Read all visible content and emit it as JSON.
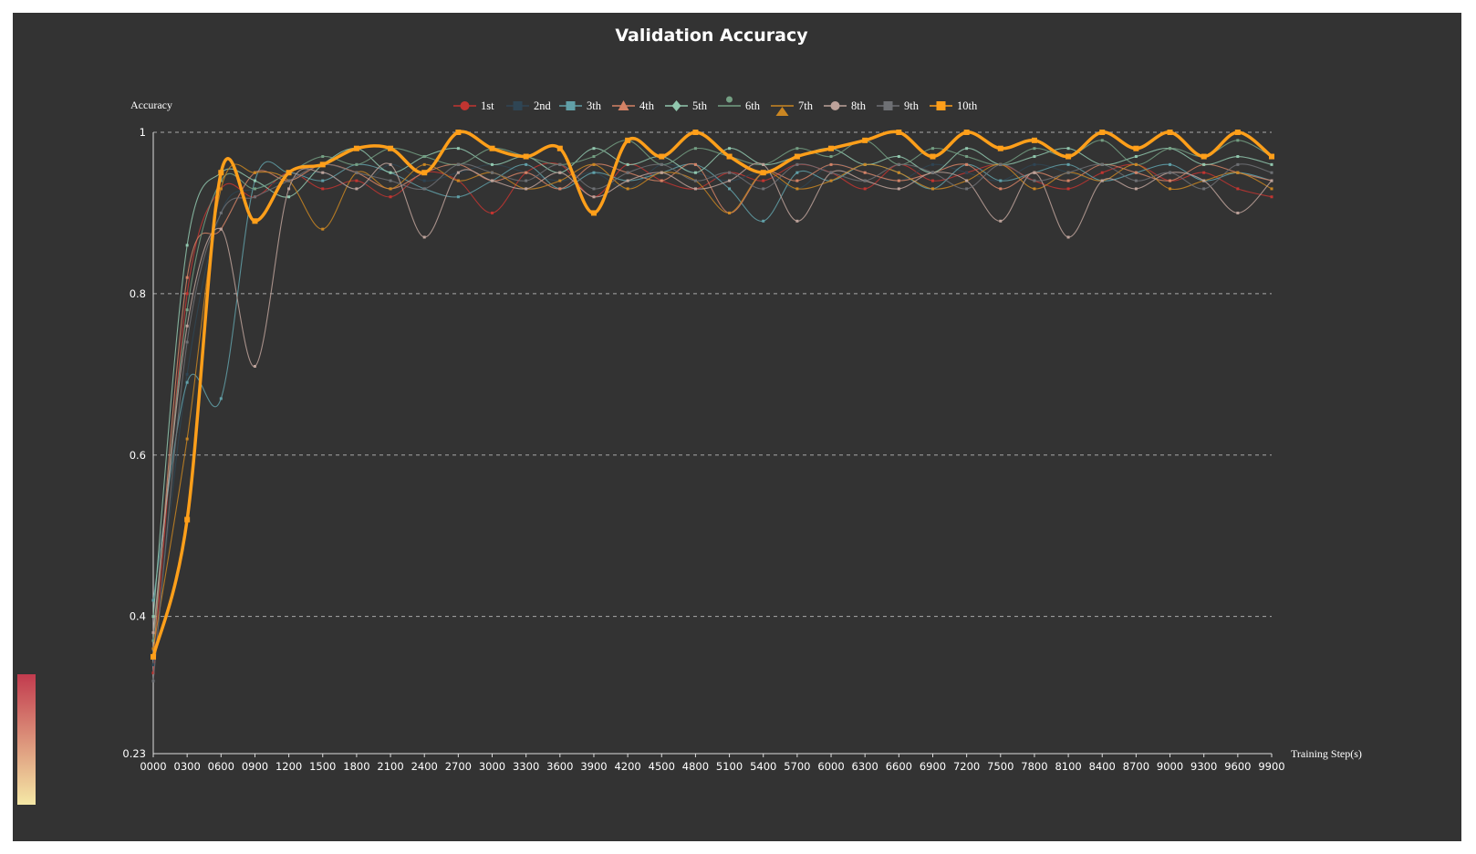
{
  "colors": {
    "background": "#333333",
    "series": [
      "#c23531",
      "#2f4554",
      "#61a0a8",
      "#d48265",
      "#91c7ae",
      "#749f83",
      "#ca8622",
      "#bda29a",
      "#6e7074",
      "#ff9f1a"
    ],
    "visual_map": [
      "#c23b4e",
      "#f5e8a6"
    ]
  },
  "chart_data": {
    "type": "line",
    "title": "Validation Accuracy",
    "ylabel": "Accuracy",
    "xlabel": "Training Step(s)",
    "ylim": [
      0.23,
      1
    ],
    "yticks": [
      "0.23",
      "0.4",
      "0.6",
      "0.8",
      "1"
    ],
    "ytick_values": [
      0.23,
      0.4,
      0.6,
      0.8,
      1
    ],
    "grid": true,
    "legend_position": "top",
    "x": [
      "0000",
      "0300",
      "0600",
      "0900",
      "1200",
      "1500",
      "1800",
      "2100",
      "2400",
      "2700",
      "3000",
      "3300",
      "3600",
      "3900",
      "4200",
      "4500",
      "4800",
      "5100",
      "5400",
      "5700",
      "6000",
      "6300",
      "6600",
      "6900",
      "7200",
      "7500",
      "7800",
      "8100",
      "8400",
      "8700",
      "9000",
      "9300",
      "9600",
      "9900"
    ],
    "series": [
      {
        "name": "1st",
        "marker": "circle",
        "values": [
          0.33,
          0.8,
          0.93,
          0.92,
          0.95,
          0.93,
          0.94,
          0.92,
          0.95,
          0.94,
          0.9,
          0.95,
          0.96,
          0.92,
          0.96,
          0.94,
          0.93,
          0.95,
          0.94,
          0.96,
          0.95,
          0.93,
          0.96,
          0.94,
          0.95,
          0.96,
          0.94,
          0.93,
          0.95,
          0.96,
          0.94,
          0.95,
          0.93,
          0.92
        ]
      },
      {
        "name": "2nd",
        "marker": "square",
        "values": [
          0.34,
          0.7,
          0.9,
          0.93,
          0.94,
          0.95,
          0.93,
          0.96,
          0.94,
          0.95,
          0.96,
          0.95,
          0.94,
          0.95,
          0.93,
          0.96,
          0.95,
          0.94,
          0.95,
          0.93,
          0.96,
          0.95,
          0.94,
          0.96,
          0.95,
          0.94,
          0.96,
          0.95,
          0.94,
          0.95,
          0.96,
          0.94,
          0.95,
          0.94
        ]
      },
      {
        "name": "3th",
        "marker": "square",
        "values": [
          0.42,
          0.69,
          0.67,
          0.94,
          0.95,
          0.94,
          0.96,
          0.95,
          0.93,
          0.92,
          0.94,
          0.96,
          0.93,
          0.95,
          0.94,
          0.95,
          0.96,
          0.93,
          0.89,
          0.95,
          0.94,
          0.96,
          0.95,
          0.93,
          0.96,
          0.94,
          0.95,
          0.96,
          0.94,
          0.95,
          0.96,
          0.94,
          0.95,
          0.94
        ]
      },
      {
        "name": "4th",
        "marker": "triangle",
        "values": [
          0.35,
          0.82,
          0.88,
          0.95,
          0.94,
          0.96,
          0.95,
          0.93,
          0.95,
          0.96,
          0.94,
          0.95,
          0.93,
          0.96,
          0.95,
          0.94,
          0.96,
          0.9,
          0.95,
          0.94,
          0.96,
          0.95,
          0.94,
          0.95,
          0.96,
          0.93,
          0.95,
          0.94,
          0.96,
          0.95,
          0.94,
          0.96,
          0.95,
          0.94
        ]
      },
      {
        "name": "5th",
        "marker": "diamond",
        "values": [
          0.4,
          0.86,
          0.95,
          0.94,
          0.92,
          0.96,
          0.98,
          0.95,
          0.97,
          0.98,
          0.96,
          0.97,
          0.95,
          0.98,
          0.96,
          0.97,
          0.95,
          0.98,
          0.96,
          0.97,
          0.98,
          0.96,
          0.97,
          0.95,
          0.98,
          0.96,
          0.97,
          0.98,
          0.96,
          0.97,
          0.98,
          0.96,
          0.97,
          0.96
        ]
      },
      {
        "name": "6th",
        "marker": "pin",
        "values": [
          0.37,
          0.78,
          0.94,
          0.93,
          0.95,
          0.97,
          0.96,
          0.98,
          0.97,
          0.96,
          0.98,
          0.97,
          0.96,
          0.97,
          0.99,
          0.96,
          0.98,
          0.97,
          0.96,
          0.98,
          0.97,
          0.99,
          0.96,
          0.98,
          0.97,
          0.96,
          0.98,
          0.97,
          0.99,
          0.96,
          0.98,
          0.97,
          0.99,
          0.97
        ]
      },
      {
        "name": "7th",
        "marker": "arrow",
        "values": [
          0.36,
          0.62,
          0.93,
          0.95,
          0.94,
          0.88,
          0.95,
          0.93,
          0.96,
          0.94,
          0.95,
          0.93,
          0.94,
          0.96,
          0.93,
          0.95,
          0.94,
          0.9,
          0.95,
          0.93,
          0.94,
          0.96,
          0.95,
          0.93,
          0.94,
          0.96,
          0.93,
          0.95,
          0.94,
          0.96,
          0.93,
          0.94,
          0.95,
          0.93
        ]
      },
      {
        "name": "8th",
        "marker": "circle",
        "values": [
          0.38,
          0.76,
          0.88,
          0.71,
          0.93,
          0.95,
          0.93,
          0.96,
          0.87,
          0.95,
          0.94,
          0.93,
          0.95,
          0.92,
          0.94,
          0.95,
          0.93,
          0.94,
          0.96,
          0.89,
          0.95,
          0.94,
          0.93,
          0.95,
          0.94,
          0.89,
          0.95,
          0.87,
          0.94,
          0.93,
          0.95,
          0.94,
          0.9,
          0.94
        ]
      },
      {
        "name": "9th",
        "marker": "square",
        "values": [
          0.32,
          0.74,
          0.9,
          0.92,
          0.94,
          0.96,
          0.95,
          0.94,
          0.93,
          0.96,
          0.95,
          0.94,
          0.96,
          0.93,
          0.95,
          0.96,
          0.94,
          0.95,
          0.93,
          0.96,
          0.95,
          0.94,
          0.96,
          0.95,
          0.93,
          0.96,
          0.94,
          0.95,
          0.96,
          0.94,
          0.95,
          0.93,
          0.96,
          0.95
        ]
      },
      {
        "name": "10th",
        "marker": "square",
        "values": [
          0.35,
          0.52,
          0.95,
          0.89,
          0.95,
          0.96,
          0.98,
          0.98,
          0.95,
          1.0,
          0.98,
          0.97,
          0.98,
          0.9,
          0.99,
          0.97,
          1.0,
          0.97,
          0.95,
          0.97,
          0.98,
          0.99,
          1.0,
          0.97,
          1.0,
          0.98,
          0.99,
          0.97,
          1.0,
          0.98,
          1.0,
          0.97,
          1.0,
          0.97
        ]
      }
    ]
  }
}
